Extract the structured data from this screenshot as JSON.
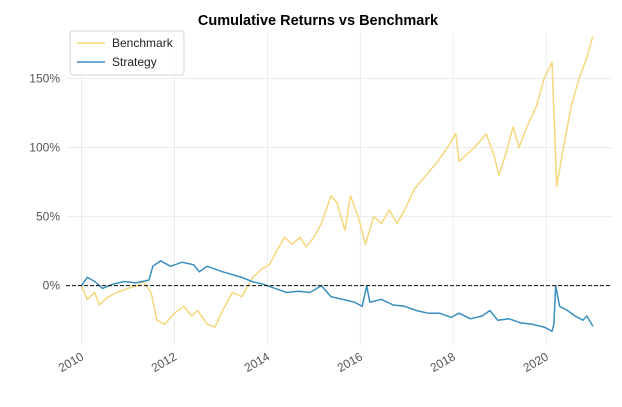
{
  "chart_data": {
    "type": "line",
    "title": "Cumulative Returns vs Benchmark",
    "xlabel": "",
    "ylabel": "",
    "x_ticks": [
      "2010",
      "2012",
      "2014",
      "2016",
      "2018",
      "2020"
    ],
    "y_ticks": [
      "0%",
      "50%",
      "100%",
      "150%"
    ],
    "x_range": [
      "2009-09-01",
      "2021-06-01"
    ],
    "y_range": [
      -43,
      183
    ],
    "grid": true,
    "legend": "top-left",
    "reference_line": {
      "y": 0,
      "style": "dashed",
      "color": "#111111"
    },
    "series": [
      {
        "name": "Benchmark",
        "color": "#f6d77c",
        "points": [
          [
            "2010-01-01",
            0
          ],
          [
            "2010-02-15",
            -10
          ],
          [
            "2010-04-15",
            -5
          ],
          [
            "2010-05-20",
            -14
          ],
          [
            "2010-07-15",
            -9
          ],
          [
            "2010-10-01",
            -5
          ],
          [
            "2011-01-01",
            -2
          ],
          [
            "2011-03-15",
            0
          ],
          [
            "2011-05-01",
            3
          ],
          [
            "2011-07-01",
            -5
          ],
          [
            "2011-08-15",
            -25
          ],
          [
            "2011-10-15",
            -28
          ],
          [
            "2012-01-01",
            -20
          ],
          [
            "2012-03-15",
            -15
          ],
          [
            "2012-05-15",
            -22
          ],
          [
            "2012-07-01",
            -18
          ],
          [
            "2012-09-15",
            -28
          ],
          [
            "2012-11-15",
            -30
          ],
          [
            "2013-01-15",
            -18
          ],
          [
            "2013-04-01",
            -5
          ],
          [
            "2013-06-15",
            -8
          ],
          [
            "2013-09-01",
            5
          ],
          [
            "2013-11-15",
            12
          ],
          [
            "2014-01-15",
            15
          ],
          [
            "2014-03-15",
            25
          ],
          [
            "2014-05-15",
            35
          ],
          [
            "2014-07-15",
            30
          ],
          [
            "2014-09-15",
            35
          ],
          [
            "2014-11-01",
            28
          ],
          [
            "2015-01-01",
            35
          ],
          [
            "2015-03-01",
            45
          ],
          [
            "2015-05-15",
            65
          ],
          [
            "2015-07-01",
            60
          ],
          [
            "2015-09-01",
            40
          ],
          [
            "2015-10-15",
            65
          ],
          [
            "2015-12-15",
            50
          ],
          [
            "2016-02-10",
            30
          ],
          [
            "2016-04-15",
            50
          ],
          [
            "2016-06-15",
            45
          ],
          [
            "2016-08-15",
            55
          ],
          [
            "2016-10-15",
            45
          ],
          [
            "2016-12-15",
            55
          ],
          [
            "2017-03-01",
            70
          ],
          [
            "2017-06-01",
            80
          ],
          [
            "2017-09-01",
            90
          ],
          [
            "2017-11-15",
            100
          ],
          [
            "2018-01-20",
            110
          ],
          [
            "2018-02-15",
            90
          ],
          [
            "2018-04-15",
            95
          ],
          [
            "2018-06-15",
            100
          ],
          [
            "2018-09-15",
            110
          ],
          [
            "2018-11-15",
            95
          ],
          [
            "2018-12-25",
            80
          ],
          [
            "2019-02-15",
            95
          ],
          [
            "2019-04-15",
            115
          ],
          [
            "2019-06-01",
            100
          ],
          [
            "2019-08-01",
            115
          ],
          [
            "2019-10-15",
            130
          ],
          [
            "2019-12-15",
            150
          ],
          [
            "2020-02-15",
            162
          ],
          [
            "2020-03-23",
            72
          ],
          [
            "2020-05-15",
            100
          ],
          [
            "2020-07-15",
            130
          ],
          [
            "2020-09-15",
            150
          ],
          [
            "2020-11-15",
            165
          ],
          [
            "2020-12-31",
            180
          ]
        ]
      },
      {
        "name": "Strategy",
        "color": "#3a8fbf",
        "points": [
          [
            "2010-01-01",
            0
          ],
          [
            "2010-02-15",
            6
          ],
          [
            "2010-04-15",
            3
          ],
          [
            "2010-06-15",
            -2
          ],
          [
            "2010-09-01",
            1
          ],
          [
            "2010-12-01",
            3
          ],
          [
            "2011-03-01",
            2
          ],
          [
            "2011-06-15",
            4
          ],
          [
            "2011-07-15",
            14
          ],
          [
            "2011-09-15",
            18
          ],
          [
            "2011-12-01",
            14
          ],
          [
            "2012-03-01",
            17
          ],
          [
            "2012-06-01",
            15
          ],
          [
            "2012-07-15",
            10
          ],
          [
            "2012-09-15",
            14
          ],
          [
            "2012-11-15",
            12
          ],
          [
            "2013-01-15",
            10
          ],
          [
            "2013-04-01",
            8
          ],
          [
            "2013-06-15",
            6
          ],
          [
            "2013-09-01",
            3
          ],
          [
            "2013-12-01",
            1
          ],
          [
            "2014-03-01",
            -2
          ],
          [
            "2014-06-01",
            -5
          ],
          [
            "2014-09-01",
            -4
          ],
          [
            "2014-12-01",
            -5
          ],
          [
            "2015-03-01",
            0
          ],
          [
            "2015-05-15",
            -8
          ],
          [
            "2015-08-15",
            -10
          ],
          [
            "2015-11-15",
            -12
          ],
          [
            "2016-01-15",
            -15
          ],
          [
            "2016-02-20",
            0
          ],
          [
            "2016-03-15",
            -12
          ],
          [
            "2016-06-15",
            -10
          ],
          [
            "2016-09-15",
            -14
          ],
          [
            "2016-12-15",
            -15
          ],
          [
            "2017-03-15",
            -18
          ],
          [
            "2017-06-15",
            -20
          ],
          [
            "2017-09-15",
            -20
          ],
          [
            "2017-12-15",
            -23
          ],
          [
            "2018-02-15",
            -20
          ],
          [
            "2018-05-15",
            -24
          ],
          [
            "2018-08-15",
            -22
          ],
          [
            "2018-10-15",
            -18
          ],
          [
            "2018-12-15",
            -25
          ],
          [
            "2019-03-15",
            -24
          ],
          [
            "2019-06-15",
            -27
          ],
          [
            "2019-09-15",
            -28
          ],
          [
            "2019-12-15",
            -30
          ],
          [
            "2020-02-15",
            -33
          ],
          [
            "2020-03-01",
            -28
          ],
          [
            "2020-03-15",
            0
          ],
          [
            "2020-04-15",
            -15
          ],
          [
            "2020-06-15",
            -18
          ],
          [
            "2020-08-15",
            -22
          ],
          [
            "2020-10-15",
            -25
          ],
          [
            "2020-11-15",
            -22
          ],
          [
            "2020-12-31",
            -29
          ]
        ]
      }
    ]
  }
}
